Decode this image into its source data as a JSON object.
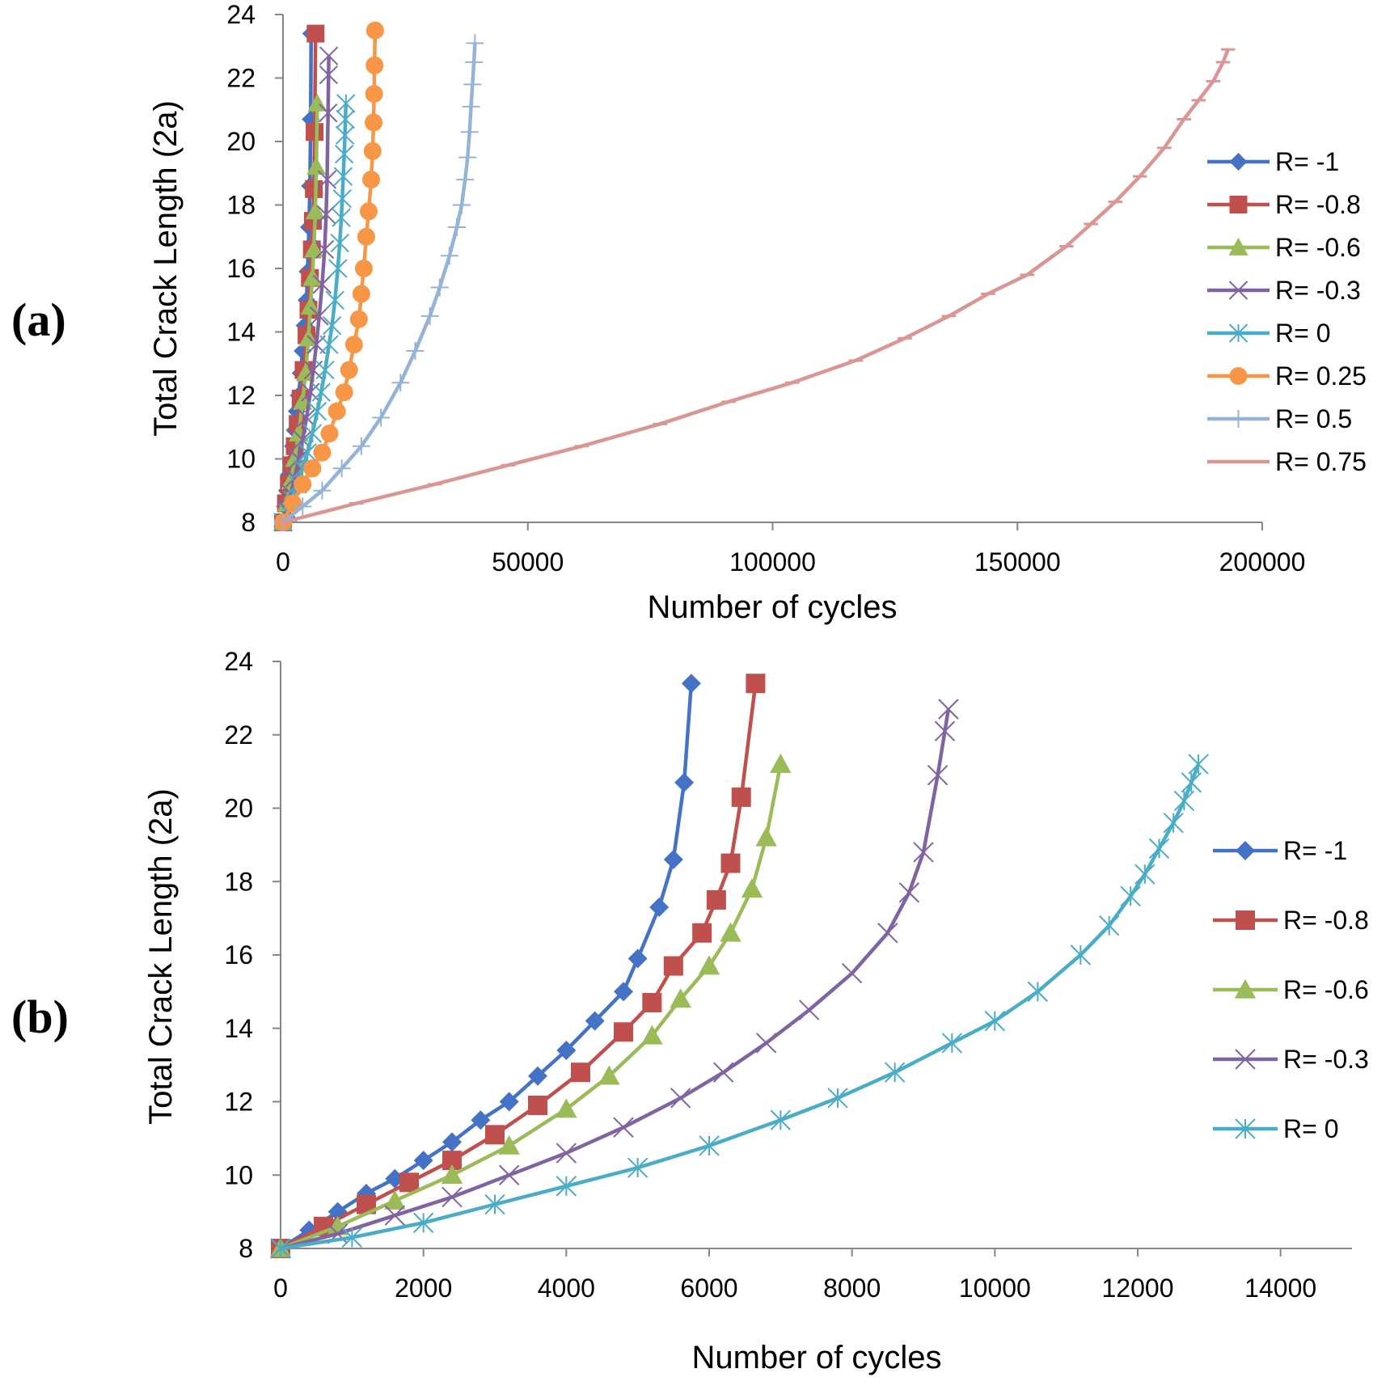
{
  "chart_data": [
    {
      "panel": "(a)",
      "type": "line",
      "xlabel": "Number of cycles",
      "ylabel": "Total Crack Length (2a)",
      "xlim": [
        0,
        200000
      ],
      "ylim": [
        8,
        24
      ],
      "xticks": [
        "0",
        "50000",
        "100000",
        "150000",
        "200000"
      ],
      "yticks": [
        "8",
        "10",
        "12",
        "14",
        "16",
        "18",
        "20",
        "22",
        "24"
      ],
      "grid": false,
      "legend_position": "right",
      "series": [
        {
          "name": "R= -1",
          "color": "#4472C4",
          "marker": "diamond",
          "x": [
            0,
            400,
            800,
            1200,
            1600,
            2000,
            2400,
            2800,
            3200,
            3600,
            4000,
            4400,
            4800,
            5000,
            5300,
            5500,
            5650,
            5750
          ],
          "y": [
            8,
            8.5,
            9,
            9.5,
            9.9,
            10.4,
            10.9,
            11.5,
            12.0,
            12.7,
            13.4,
            14.2,
            15.0,
            15.9,
            17.3,
            18.6,
            20.7,
            23.4
          ]
        },
        {
          "name": "R= -0.8",
          "color": "#C0504D",
          "marker": "square",
          "x": [
            0,
            600,
            1200,
            1800,
            2400,
            3000,
            3600,
            4200,
            4800,
            5200,
            5500,
            5900,
            6100,
            6300,
            6450,
            6650
          ],
          "y": [
            8,
            8.6,
            9.2,
            9.8,
            10.4,
            11.1,
            11.9,
            12.8,
            13.9,
            14.7,
            15.7,
            16.6,
            17.5,
            18.5,
            20.3,
            23.4
          ]
        },
        {
          "name": "R= -0.6",
          "color": "#9BBB59",
          "marker": "triangle",
          "x": [
            0,
            800,
            1600,
            2400,
            3200,
            4000,
            4600,
            5200,
            5600,
            6000,
            6300,
            6600,
            6800,
            7000
          ],
          "y": [
            8,
            8.6,
            9.3,
            10.0,
            10.8,
            11.8,
            12.7,
            13.8,
            14.8,
            15.7,
            16.6,
            17.8,
            19.2,
            21.2
          ]
        },
        {
          "name": "R= -0.3",
          "color": "#8064A2",
          "marker": "x",
          "x": [
            0,
            800,
            1600,
            2400,
            3200,
            4000,
            4800,
            5600,
            6200,
            6800,
            7400,
            8000,
            8500,
            8800,
            9000,
            9200,
            9300,
            9350
          ],
          "y": [
            8,
            8.4,
            8.9,
            9.4,
            10.0,
            10.6,
            11.3,
            12.1,
            12.8,
            13.6,
            14.5,
            15.5,
            16.6,
            17.7,
            18.8,
            20.9,
            22.1,
            22.7
          ]
        },
        {
          "name": "R= 0",
          "color": "#4BACC6",
          "marker": "asterisk",
          "x": [
            0,
            1000,
            2000,
            3000,
            4000,
            5000,
            6000,
            7000,
            7800,
            8600,
            9400,
            10000,
            10600,
            11200,
            11600,
            11900,
            12100,
            12300,
            12500,
            12650,
            12750,
            12850
          ],
          "y": [
            8,
            8.3,
            8.7,
            9.2,
            9.7,
            10.2,
            10.8,
            11.5,
            12.1,
            12.8,
            13.6,
            14.2,
            15.0,
            16.0,
            16.8,
            17.6,
            18.2,
            18.9,
            19.6,
            20.2,
            20.7,
            21.2
          ]
        },
        {
          "name": "R= 0.25",
          "color": "#F79646",
          "marker": "circle",
          "x": [
            0,
            2000,
            4000,
            6000,
            8000,
            9500,
            11000,
            12500,
            13500,
            14500,
            15500,
            16000,
            16500,
            17000,
            17500,
            18000,
            18300,
            18500,
            18600,
            18700,
            18800
          ],
          "y": [
            8,
            8.6,
            9.2,
            9.7,
            10.2,
            10.8,
            11.5,
            12.1,
            12.8,
            13.6,
            14.4,
            15.2,
            16.0,
            17.0,
            17.8,
            18.8,
            19.7,
            20.6,
            21.5,
            22.4,
            23.5
          ]
        },
        {
          "name": "R= 0.5",
          "color": "#95B3D7",
          "marker": "plus",
          "x": [
            0,
            4000,
            8000,
            12000,
            16000,
            20000,
            24000,
            27000,
            30000,
            32000,
            34000,
            35500,
            36500,
            37200,
            37700,
            38100,
            38400,
            38700,
            39000,
            39200
          ],
          "y": [
            8,
            8.5,
            9.0,
            9.7,
            10.4,
            11.3,
            12.4,
            13.4,
            14.5,
            15.4,
            16.4,
            17.3,
            18.0,
            18.8,
            19.5,
            20.3,
            21.1,
            21.8,
            22.5,
            23.1
          ]
        },
        {
          "name": "R= 0.75",
          "color": "#D99694",
          "marker": "dash",
          "x": [
            0,
            15000,
            31000,
            46000,
            61000,
            77000,
            91000,
            104000,
            117000,
            127000,
            136000,
            144000,
            152000,
            160000,
            165000,
            170000,
            175000,
            180000,
            184000,
            187000,
            190000,
            192000,
            193000
          ],
          "y": [
            8,
            8.6,
            9.2,
            9.8,
            10.4,
            11.1,
            11.8,
            12.4,
            13.1,
            13.8,
            14.5,
            15.2,
            15.8,
            16.7,
            17.4,
            18.1,
            18.9,
            19.8,
            20.7,
            21.3,
            21.9,
            22.5,
            22.9
          ]
        }
      ]
    },
    {
      "panel": "(b)",
      "type": "line",
      "xlabel": "Number of cycles",
      "ylabel": "Total Crack Length (2a)",
      "xlim": [
        0,
        15000
      ],
      "ylim": [
        8,
        24
      ],
      "xticks": [
        "0",
        "2000",
        "4000",
        "6000",
        "8000",
        "10000",
        "12000",
        "14000"
      ],
      "yticks": [
        "8",
        "10",
        "12",
        "14",
        "16",
        "18",
        "20",
        "22",
        "24"
      ],
      "grid": false,
      "legend_position": "right",
      "series": [
        {
          "name": "R= -1",
          "color": "#4472C4",
          "marker": "diamond",
          "x": [
            0,
            400,
            800,
            1200,
            1600,
            2000,
            2400,
            2800,
            3200,
            3600,
            4000,
            4400,
            4800,
            5000,
            5300,
            5500,
            5650,
            5750
          ],
          "y": [
            8,
            8.5,
            9,
            9.5,
            9.9,
            10.4,
            10.9,
            11.5,
            12.0,
            12.7,
            13.4,
            14.2,
            15.0,
            15.9,
            17.3,
            18.6,
            20.7,
            23.4
          ]
        },
        {
          "name": "R= -0.8",
          "color": "#C0504D",
          "marker": "square",
          "x": [
            0,
            600,
            1200,
            1800,
            2400,
            3000,
            3600,
            4200,
            4800,
            5200,
            5500,
            5900,
            6100,
            6300,
            6450,
            6650
          ],
          "y": [
            8,
            8.6,
            9.2,
            9.8,
            10.4,
            11.1,
            11.9,
            12.8,
            13.9,
            14.7,
            15.7,
            16.6,
            17.5,
            18.5,
            20.3,
            23.4
          ]
        },
        {
          "name": "R= -0.6",
          "color": "#9BBB59",
          "marker": "triangle",
          "x": [
            0,
            800,
            1600,
            2400,
            3200,
            4000,
            4600,
            5200,
            5600,
            6000,
            6300,
            6600,
            6800,
            7000
          ],
          "y": [
            8,
            8.6,
            9.3,
            10.0,
            10.8,
            11.8,
            12.7,
            13.8,
            14.8,
            15.7,
            16.6,
            17.8,
            19.2,
            21.2
          ]
        },
        {
          "name": "R= -0.3",
          "color": "#8064A2",
          "marker": "x",
          "x": [
            0,
            800,
            1600,
            2400,
            3200,
            4000,
            4800,
            5600,
            6200,
            6800,
            7400,
            8000,
            8500,
            8800,
            9000,
            9200,
            9300,
            9350
          ],
          "y": [
            8,
            8.4,
            8.9,
            9.4,
            10.0,
            10.6,
            11.3,
            12.1,
            12.8,
            13.6,
            14.5,
            15.5,
            16.6,
            17.7,
            18.8,
            20.9,
            22.1,
            22.7
          ]
        },
        {
          "name": "R= 0",
          "color": "#4BACC6",
          "marker": "asterisk",
          "x": [
            0,
            1000,
            2000,
            3000,
            4000,
            5000,
            6000,
            7000,
            7800,
            8600,
            9400,
            10000,
            10600,
            11200,
            11600,
            11900,
            12100,
            12300,
            12500,
            12650,
            12750,
            12850
          ],
          "y": [
            8,
            8.3,
            8.7,
            9.2,
            9.7,
            10.2,
            10.8,
            11.5,
            12.1,
            12.8,
            13.6,
            14.2,
            15.0,
            16.0,
            16.8,
            17.6,
            18.2,
            18.9,
            19.6,
            20.2,
            20.7,
            21.2
          ]
        }
      ]
    }
  ]
}
